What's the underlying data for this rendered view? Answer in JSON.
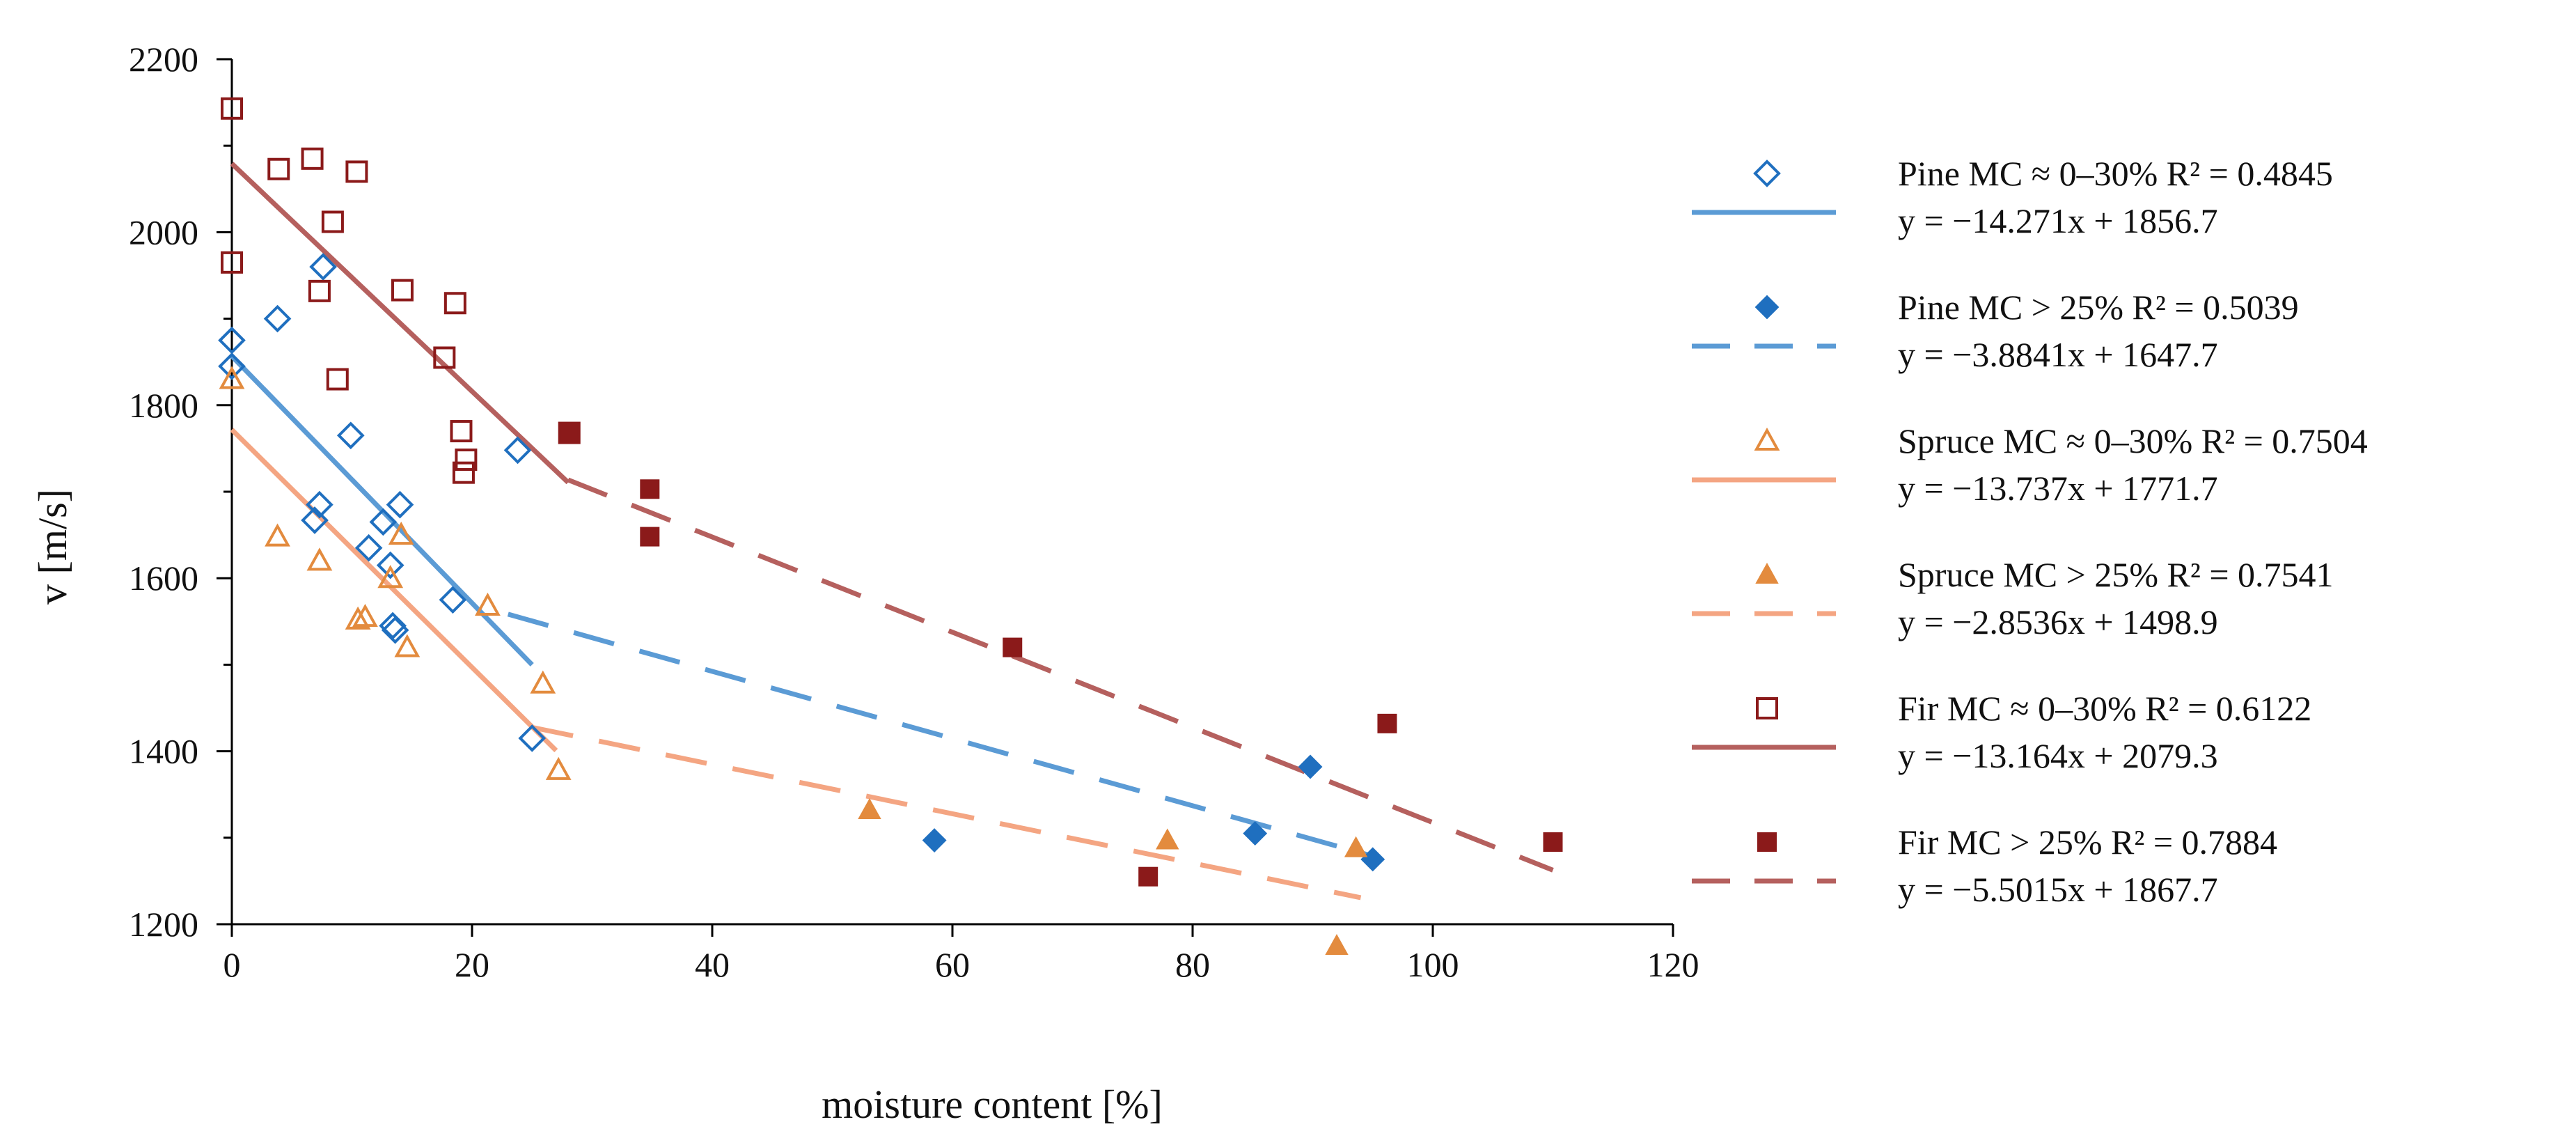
{
  "chart_data": {
    "type": "scatter",
    "title": "",
    "xlabel": "moisture content [%]",
    "ylabel": "v [m/s]",
    "xlim": [
      0,
      120
    ],
    "ylim": [
      1200,
      2200
    ],
    "xticks": [
      0,
      20,
      40,
      60,
      80,
      100,
      120
    ],
    "yticks": [
      1200,
      1400,
      1600,
      1800,
      2000,
      2200
    ],
    "legend_position": "right",
    "colors": {
      "pine_marker": "#1f6fbf",
      "pine_fit": "#5b9bd5",
      "spruce_marker": "#e38b3e",
      "spruce_fit": "#f4a582",
      "fir_marker": "#8b1a1a",
      "fir_fit": "#b5605e"
    },
    "series": [
      {
        "name": "Pine MC ≈ 0–30%",
        "r2_text": "R² = 0.4845",
        "equation": "y = −14.271x + 1856.7",
        "marker": "diamond-open",
        "marker_color": "#1f6fbf",
        "line_color": "#5b9bd5",
        "dashed": false,
        "slope": -14.271,
        "intercept": 1856.7,
        "fit_range": [
          0,
          25
        ],
        "points": [
          [
            0,
            1875
          ],
          [
            0,
            1845
          ],
          [
            3.8,
            1900
          ],
          [
            7.6,
            1960
          ],
          [
            9.9,
            1765
          ],
          [
            7.3,
            1685
          ],
          [
            6.9,
            1667
          ],
          [
            12.6,
            1665
          ],
          [
            14,
            1685
          ],
          [
            11.4,
            1635
          ],
          [
            13.2,
            1615
          ],
          [
            18.4,
            1575
          ],
          [
            13.4,
            1545
          ],
          [
            13.6,
            1540
          ],
          [
            23.8,
            1748
          ],
          [
            25,
            1415
          ]
        ]
      },
      {
        "name": "Pine MC > 25%",
        "r2_text": "R² = 0.5039",
        "equation": "y = −3.8841x + 1647.7",
        "marker": "diamond-filled",
        "marker_color": "#1f6fbf",
        "line_color": "#5b9bd5",
        "dashed": true,
        "slope": -3.8841,
        "intercept": 1647.7,
        "fit_range": [
          23,
          95
        ],
        "points": [
          [
            58.5,
            1297
          ],
          [
            85.2,
            1305
          ],
          [
            89.8,
            1382
          ],
          [
            95,
            1275
          ]
        ]
      },
      {
        "name": "Spruce MC ≈ 0–30%",
        "r2_text": "R² = 0.7504",
        "equation": "y = −13.737x + 1771.7",
        "marker": "triangle-open",
        "marker_color": "#e38b3e",
        "line_color": "#f4a582",
        "dashed": false,
        "slope": -13.737,
        "intercept": 1771.7,
        "fit_range": [
          0,
          27
        ],
        "points": [
          [
            0,
            1830
          ],
          [
            3.8,
            1648
          ],
          [
            7.3,
            1620
          ],
          [
            10.5,
            1552
          ],
          [
            11.1,
            1555
          ],
          [
            13.2,
            1600
          ],
          [
            14.1,
            1650
          ],
          [
            14.6,
            1520
          ],
          [
            21.3,
            1568
          ],
          [
            25.9,
            1478
          ],
          [
            27.2,
            1378
          ]
        ]
      },
      {
        "name": "Spruce MC > 25%",
        "r2_text": "R² = 0.7541",
        "equation": "y = −2.8536x + 1498.9",
        "marker": "triangle-filled",
        "marker_color": "#e38b3e",
        "line_color": "#f4a582",
        "dashed": true,
        "slope": -2.8536,
        "intercept": 1498.9,
        "fit_range": [
          25,
          94
        ],
        "points": [
          [
            53.1,
            1332
          ],
          [
            77.9,
            1297
          ],
          [
            92,
            1175
          ],
          [
            93.6,
            1288
          ]
        ]
      },
      {
        "name": "Fir MC ≈ 0–30%",
        "r2_text": "R² = 0.6122",
        "equation": "y = −13.164x + 2079.3",
        "marker": "square-open",
        "marker_color": "#8b1a1a",
        "line_color": "#b5605e",
        "dashed": false,
        "slope": -13.164,
        "intercept": 2079.3,
        "fit_range": [
          0,
          28
        ],
        "points": [
          [
            0,
            2143
          ],
          [
            0,
            1965
          ],
          [
            3.9,
            2073
          ],
          [
            6.7,
            2085
          ],
          [
            10.4,
            2070
          ],
          [
            8.4,
            2012
          ],
          [
            7.3,
            1932
          ],
          [
            8.8,
            1830
          ],
          [
            14.2,
            1933
          ],
          [
            18.6,
            1918
          ],
          [
            17.7,
            1855
          ],
          [
            19.1,
            1770
          ],
          [
            19.5,
            1737
          ],
          [
            19.3,
            1722
          ],
          [
            28.1,
            1768
          ]
        ]
      },
      {
        "name": "Fir MC > 25%",
        "r2_text": "R² = 0.7884",
        "equation": "y = −5.5015x + 1867.7",
        "marker": "square-filled",
        "marker_color": "#8b1a1a",
        "line_color": "#b5605e",
        "dashed": true,
        "slope": -5.5015,
        "intercept": 1867.7,
        "fit_range": [
          28,
          110
        ],
        "points": [
          [
            28.1,
            1768
          ],
          [
            34.8,
            1703
          ],
          [
            34.8,
            1648
          ],
          [
            65,
            1520
          ],
          [
            76.3,
            1255
          ],
          [
            96.2,
            1432
          ],
          [
            110,
            1295
          ]
        ]
      }
    ]
  }
}
